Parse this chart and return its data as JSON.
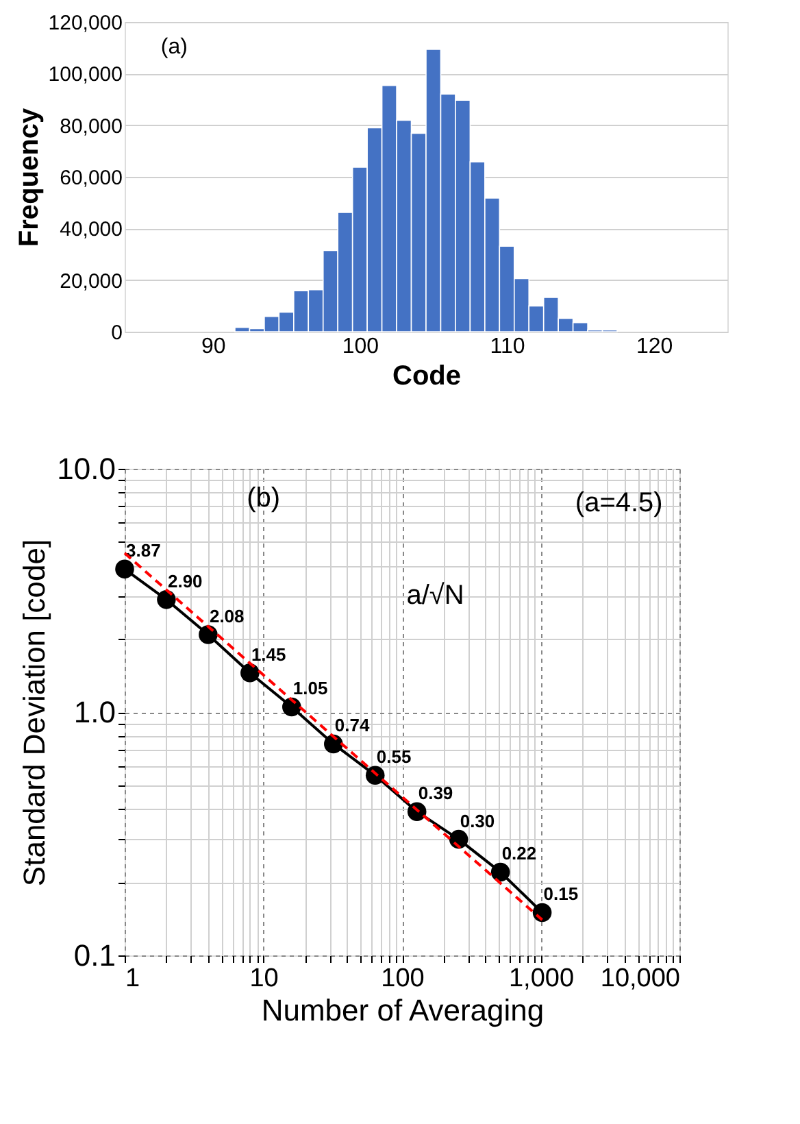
{
  "chart_data": [
    {
      "type": "histogram",
      "xlabel": "Code",
      "ylabel": "Frequency",
      "annotations": [
        "(a)"
      ],
      "color": "#4472c4",
      "bins": [
        91.5,
        92.5,
        93.5,
        94.5,
        95.5,
        96.5,
        97.5,
        98.5,
        99.5,
        100.5,
        101.5,
        102.5,
        103.5,
        104.5,
        105.5,
        106.5,
        107.5,
        108.5,
        109.5,
        110.5,
        111.5,
        112.5,
        113.5,
        114.5,
        115.5,
        116.5,
        117.5
      ],
      "values": [
        1700,
        1200,
        5900,
        7600,
        15900,
        16300,
        31500,
        46200,
        63700,
        79000,
        95400,
        81900,
        76900,
        109400,
        92100,
        89700,
        65800,
        51800,
        33100,
        20600,
        10000,
        13300,
        5200,
        3500,
        700,
        700
      ],
      "xlim": [
        84,
        125
      ],
      "xticks": [
        90,
        100,
        110,
        120
      ],
      "ylim": [
        0,
        120000
      ],
      "yticks": [
        0,
        {
          "value": 20000,
          "label": "20,000"
        },
        {
          "value": 40000,
          "label": "40,000"
        },
        {
          "value": 60000,
          "label": "60,000"
        },
        {
          "value": 80000,
          "label": "80,000"
        },
        {
          "value": 100000,
          "label": "100,000"
        },
        {
          "value": 120000,
          "label": "120,000"
        }
      ],
      "grid": "y",
      "legend": false
    },
    {
      "type": "line",
      "xlabel": "Number of Averaging",
      "ylabel": "Standard Deviation [code]",
      "annotations": [
        "(b)",
        "(a=4.5)",
        "a/√N"
      ],
      "log": "xy",
      "grid": true,
      "legend": false,
      "marker": "circle",
      "xlim": [
        1,
        10000
      ],
      "ylim": [
        0.1,
        10
      ],
      "xticks": [
        1,
        {
          "value": 2,
          "label": null
        },
        {
          "value": 3,
          "label": null
        },
        {
          "value": 4,
          "label": null
        },
        {
          "value": 5,
          "label": null
        },
        {
          "value": 6,
          "label": null
        },
        {
          "value": 7,
          "label": null
        },
        {
          "value": 8,
          "label": null
        },
        {
          "value": 9,
          "label": null
        },
        10,
        {
          "value": 20,
          "label": null
        },
        {
          "value": 30,
          "label": null
        },
        {
          "value": 40,
          "label": null
        },
        {
          "value": 50,
          "label": null
        },
        {
          "value": 60,
          "label": null
        },
        {
          "value": 70,
          "label": null
        },
        {
          "value": 80,
          "label": null
        },
        {
          "value": 90,
          "label": null
        },
        100,
        {
          "value": 200,
          "label": null
        },
        {
          "value": 300,
          "label": null
        },
        {
          "value": 400,
          "label": null
        },
        {
          "value": 500,
          "label": null
        },
        {
          "value": 600,
          "label": null
        },
        {
          "value": 700,
          "label": null
        },
        {
          "value": 800,
          "label": null
        },
        {
          "value": 900,
          "label": null
        },
        {
          "value": 1000,
          "label": "1,000"
        },
        {
          "value": 2000,
          "label": null
        },
        {
          "value": 3000,
          "label": null
        },
        {
          "value": 4000,
          "label": null
        },
        {
          "value": 5000,
          "label": null
        },
        {
          "value": 6000,
          "label": null
        },
        {
          "value": 7000,
          "label": null
        },
        {
          "value": 8000,
          "label": null
        },
        {
          "value": 9000,
          "label": null
        },
        {
          "value": 10000,
          "label": "10,000"
        }
      ],
      "yticks": [
        0.1,
        {
          "value": 0.2,
          "label": null
        },
        {
          "value": 0.3,
          "label": null
        },
        {
          "value": 0.4,
          "label": null
        },
        {
          "value": 0.5,
          "label": null
        },
        {
          "value": 0.6,
          "label": null
        },
        {
          "value": 0.7,
          "label": null
        },
        {
          "value": 0.8,
          "label": null
        },
        {
          "value": 0.9,
          "label": null
        },
        {
          "value": 1,
          "label": "1.0"
        },
        {
          "value": 2,
          "label": null
        },
        {
          "value": 3,
          "label": null
        },
        {
          "value": 4,
          "label": null
        },
        {
          "value": 5,
          "label": null
        },
        {
          "value": 6,
          "label": null
        },
        {
          "value": 7,
          "label": null
        },
        {
          "value": 8,
          "label": null
        },
        {
          "value": 9,
          "label": null
        },
        {
          "value": 10,
          "label": "10.0"
        }
      ],
      "series": [
        {
          "type": "line",
          "color": "#000000",
          "line_style": "solid",
          "x": [
            1,
            2,
            4,
            8,
            16,
            32,
            64,
            128,
            256,
            512,
            1024
          ],
          "values": [
            3.87,
            2.9,
            2.08,
            1.45,
            1.05,
            0.74,
            0.55,
            0.39,
            0.3,
            0.22,
            0.15
          ],
          "value_labels": [
            "3.87",
            "2.90",
            "2.08",
            "1.45",
            "1.05",
            "0.74",
            "0.55",
            "0.39",
            "0.30",
            "0.22",
            "0.15"
          ]
        },
        {
          "type": "line",
          "color": "#ff0000",
          "line_style": "dashed",
          "marker": "none",
          "x": [
            1,
            1024
          ],
          "values": [
            4.5,
            0.14
          ]
        }
      ]
    }
  ]
}
